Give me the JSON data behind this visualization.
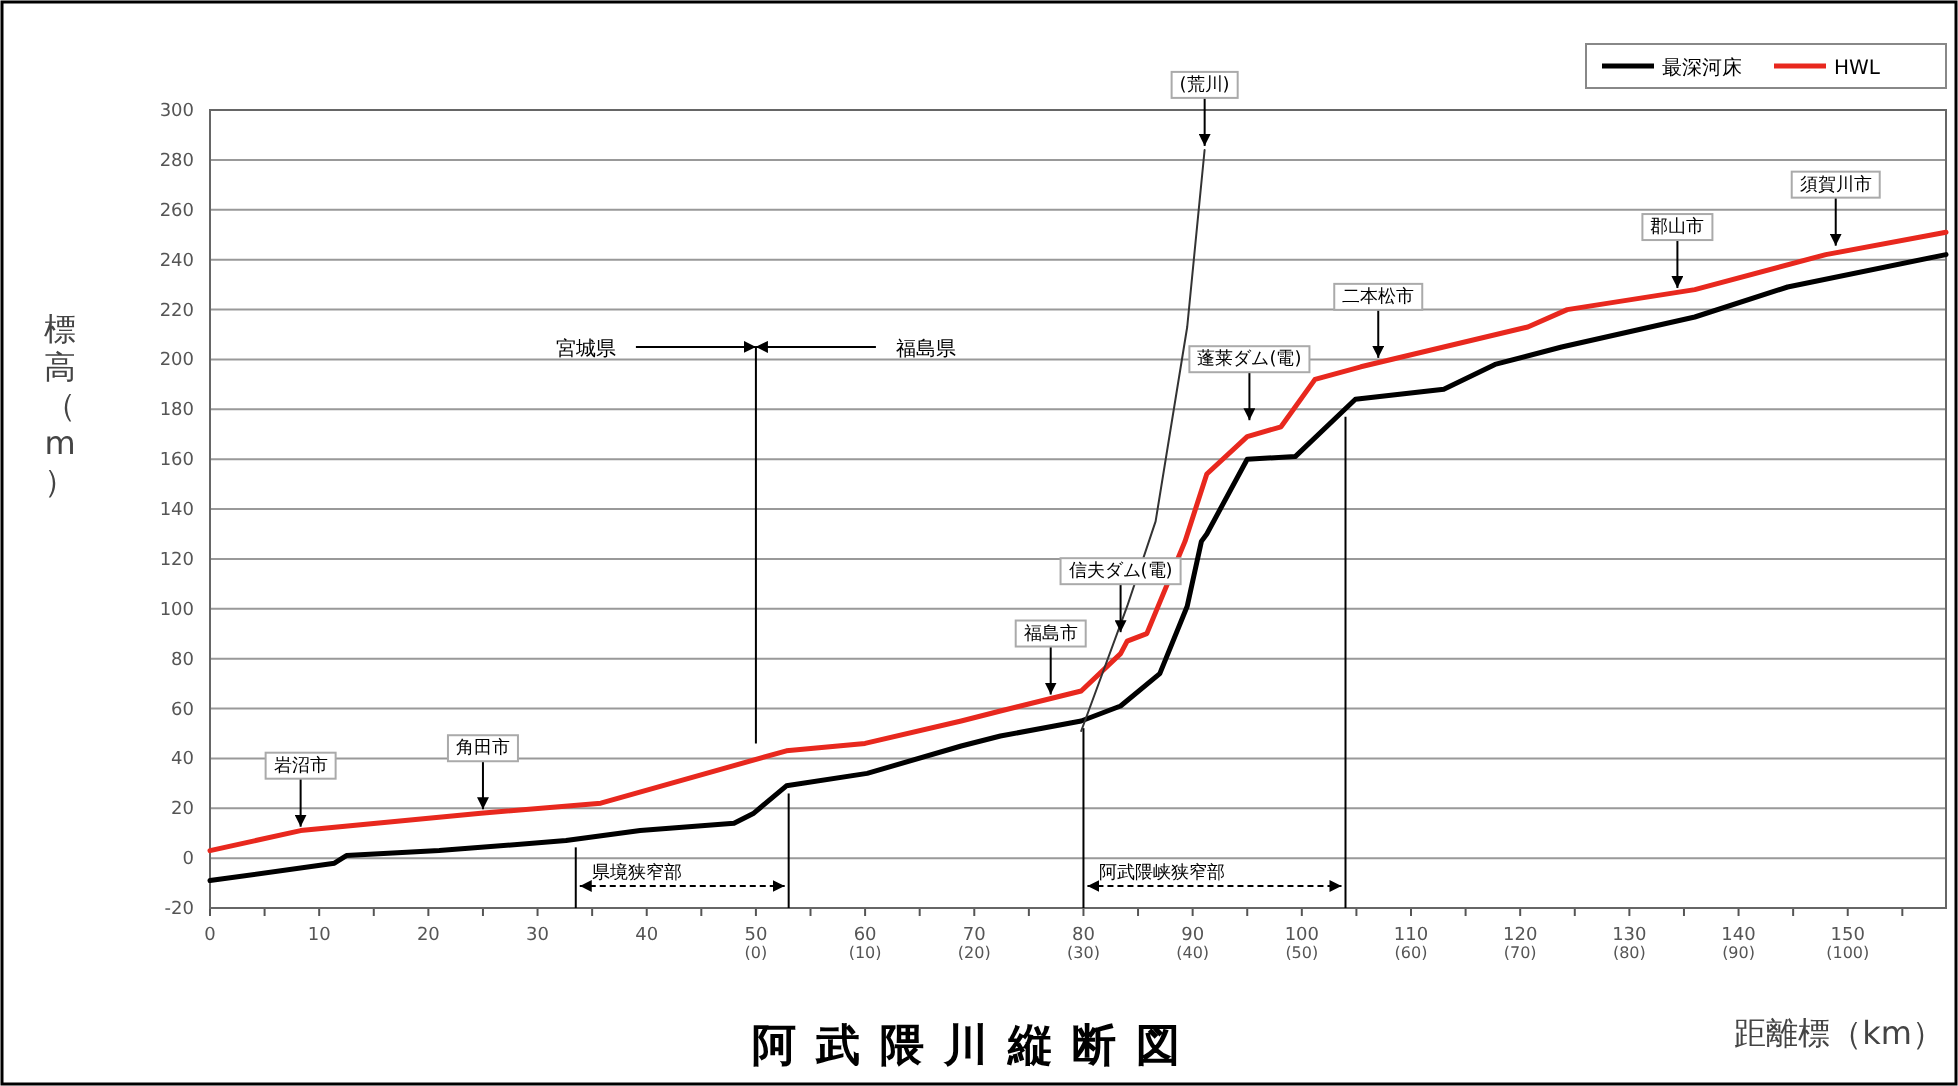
{
  "chart_data": {
    "type": "line",
    "title": "阿武隈川縦断図",
    "xlabel": "距離標（km）",
    "ylabel": "標高（m）",
    "xlim": [
      0,
      159
    ],
    "xticks": [
      0,
      {
        "value": 5,
        "label": null
      },
      10,
      {
        "value": 15,
        "label": null
      },
      20,
      {
        "value": 25,
        "label": null
      },
      30,
      {
        "value": 35,
        "label": null
      },
      40,
      {
        "value": 45,
        "label": null
      },
      {
        "value": 50,
        "label": "50$_{(0)}$"
      },
      {
        "value": 55,
        "label": null
      },
      {
        "value": 60,
        "label": "60$_{(10)}$"
      },
      {
        "value": 65,
        "label": null
      },
      {
        "value": 70,
        "label": "70$_{(20)}$"
      },
      {
        "value": 75,
        "label": null
      },
      {
        "value": 80,
        "label": "80$_{(30)}$"
      },
      {
        "value": 85,
        "label": null
      },
      {
        "value": 90,
        "label": "90$_{(40)}$"
      },
      {
        "value": 95,
        "label": null
      },
      {
        "value": 100,
        "label": "100$_{(50)}$"
      },
      {
        "value": 105,
        "label": null
      },
      {
        "value": 110,
        "label": "110$_{(60)}$"
      },
      {
        "value": 115,
        "label": null
      },
      {
        "value": 120,
        "label": "120$_{(70)}$"
      },
      {
        "value": 125,
        "label": null
      },
      {
        "value": 130,
        "label": "130$_{(80)}$"
      },
      {
        "value": 135,
        "label": null
      },
      {
        "value": 140,
        "label": "140$_{(90)}$"
      },
      {
        "value": 145,
        "label": null
      },
      {
        "value": 150,
        "label": "150$_{(100)}$"
      },
      {
        "value": 155,
        "label": null
      }
    ],
    "ylim": [
      -20,
      300
    ],
    "yticks": [
      -20,
      0,
      20,
      40,
      60,
      80,
      100,
      120,
      140,
      160,
      180,
      200,
      220,
      240,
      260,
      280,
      300
    ],
    "grid": "y",
    "legend": "top right",
    "series": [
      {
        "name": "最深河床",
        "color": "#000000",
        "x": [
          0,
          11.4,
          12.5,
          21,
          32.6,
          39.4,
          48,
          49.8,
          52.8,
          60.2,
          68.8,
          72.4,
          79.8,
          83.4,
          87,
          89.5,
          90.8,
          91.3,
          95,
          99.4,
          104.9,
          113,
          117.7,
          123.8,
          136,
          144.5,
          159
        ],
        "values": [
          -9,
          -2,
          1,
          3,
          7,
          11,
          14,
          18,
          29,
          34,
          45,
          49,
          55,
          61,
          74,
          101,
          127,
          130,
          160,
          161,
          184,
          188,
          198,
          205,
          217,
          229,
          242
        ]
      },
      {
        "name": "HWL",
        "color": "#e8281e",
        "x": [
          0,
          8.3,
          24.8,
          35.8,
          52.8,
          60,
          68.8,
          72.4,
          79.8,
          83.4,
          84,
          85.8,
          89.3,
          91.3,
          95,
          98.1,
          101.2,
          105.4,
          120.7,
          124.3,
          136,
          148,
          159
        ],
        "values": [
          3,
          11,
          18,
          22,
          43,
          46,
          55,
          59,
          67,
          82,
          87,
          90,
          127,
          154,
          169,
          173,
          192,
          197,
          213,
          220,
          228,
          242,
          251
        ]
      },
      {
        "color": "#333333",
        "x": [
          79.8,
          84,
          86.6,
          89.5,
          91.1
        ],
        "values": [
          51,
          101,
          135,
          213,
          284
        ]
      }
    ],
    "ref_lines": [
      {
        "axis": "x",
        "value": 50
      },
      {
        "axis": "x",
        "value": 33.5,
        "label": "県境狭窄部"
      },
      {
        "axis": "x",
        "value": 53
      },
      {
        "axis": "x",
        "value": 80,
        "label": "阿武隈峡狭窄部"
      },
      {
        "axis": "x",
        "value": 104
      }
    ],
    "annotations": [
      {
        "text": "宮城県",
        "x": 50,
        "y": 205
      },
      {
        "text": "福島県",
        "x": 50,
        "y": 205
      },
      {
        "text": "岩沼市",
        "x": 8.3,
        "y": 11
      },
      {
        "text": "角田市",
        "x": 25,
        "y": 18
      },
      {
        "text": "福島市",
        "x": 77,
        "y": 64
      },
      {
        "text": "信夫ダム(電)",
        "x": 83.4,
        "y": 89
      },
      {
        "text": "蓬莱ダム(電)",
        "x": 95.2,
        "y": 174
      },
      {
        "text": "二本松市",
        "x": 107,
        "y": 199
      },
      {
        "text": "郡山市",
        "x": 134.4,
        "y": 227
      },
      {
        "text": "須賀川市",
        "x": 148.9,
        "y": 244
      },
      {
        "text": "(荒川)",
        "x": 91.1,
        "y": 284
      }
    ]
  }
}
